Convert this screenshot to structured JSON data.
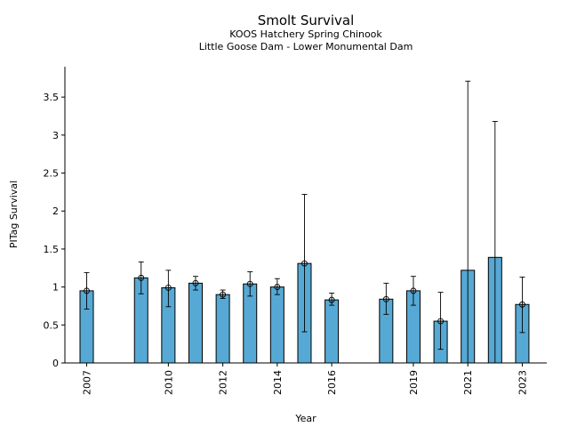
{
  "chart_data": {
    "type": "bar",
    "title": "Smolt Survival",
    "subtitle": [
      "KOOS Hatchery Spring Chinook",
      "Little Goose Dam - Lower Monumental Dam"
    ],
    "xlabel": "Year",
    "ylabel": "PITag Survival",
    "ylim": [
      0,
      3.9
    ],
    "xlim": [
      2006.2,
      2023.9
    ],
    "yticks": [
      0,
      0.5,
      1,
      1.5,
      2,
      2.5,
      3,
      3.5
    ],
    "ytick_labels": [
      "0",
      "0.5",
      "1",
      "1.5",
      "2",
      "2.5",
      "3",
      "3.5"
    ],
    "xticks": [
      2007,
      2010,
      2012,
      2014,
      2016,
      2019,
      2021,
      2023
    ],
    "xtick_labels": [
      "2007",
      "2010",
      "2012",
      "2014",
      "2016",
      "2019",
      "2021",
      "2023"
    ],
    "grid": false,
    "bar_color": "#56a9d4",
    "series": [
      {
        "points": [
          {
            "year": 2007,
            "value": 0.95,
            "low": 0.71,
            "high": 1.19,
            "marker": true
          },
          {
            "year": 2009,
            "value": 1.12,
            "low": 0.91,
            "high": 1.33,
            "marker": true
          },
          {
            "year": 2010,
            "value": 0.99,
            "low": 0.74,
            "high": 1.22,
            "marker": true
          },
          {
            "year": 2011,
            "value": 1.05,
            "low": 0.96,
            "high": 1.14,
            "marker": true
          },
          {
            "year": 2012,
            "value": 0.9,
            "low": 0.85,
            "high": 0.96,
            "marker": true
          },
          {
            "year": 2013,
            "value": 1.04,
            "low": 0.88,
            "high": 1.2,
            "marker": true
          },
          {
            "year": 2014,
            "value": 1.0,
            "low": 0.9,
            "high": 1.11,
            "marker": true
          },
          {
            "year": 2015,
            "value": 1.31,
            "low": 0.41,
            "high": 2.22,
            "marker": true
          },
          {
            "year": 2016,
            "value": 0.83,
            "low": 0.76,
            "high": 0.92,
            "marker": true
          },
          {
            "year": 2018,
            "value": 0.84,
            "low": 0.64,
            "high": 1.05,
            "marker": true
          },
          {
            "year": 2019,
            "value": 0.95,
            "low": 0.76,
            "high": 1.14,
            "marker": true
          },
          {
            "year": 2020,
            "value": 0.55,
            "low": 0.18,
            "high": 0.93,
            "marker": true
          },
          {
            "year": 2021,
            "value": 1.22,
            "low": 0.0,
            "high": 3.71,
            "marker": false
          },
          {
            "year": 2022,
            "value": 1.39,
            "low": 0.0,
            "high": 3.18,
            "marker": false
          },
          {
            "year": 2023,
            "value": 0.77,
            "low": 0.4,
            "high": 1.13,
            "marker": true
          }
        ]
      }
    ]
  }
}
